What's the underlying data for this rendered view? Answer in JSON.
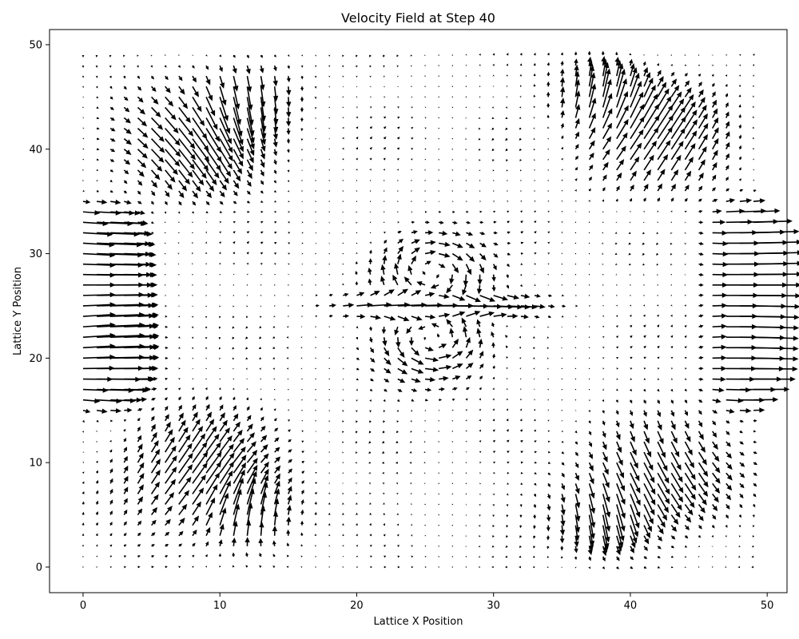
{
  "chart_data": {
    "type": "quiver",
    "title": "Velocity Field at Step 40",
    "xlabel": "Lattice X Position",
    "ylabel": "Lattice Y Position",
    "xlim": [
      -2.45,
      51.45
    ],
    "ylim": [
      -2.45,
      51.45
    ],
    "x_ticks": [
      0,
      10,
      20,
      30,
      40,
      50
    ],
    "y_ticks": [
      0,
      10,
      20,
      30,
      40,
      50
    ],
    "grid": false,
    "arrow_color": "#000000",
    "field": {
      "grid_x": [
        0,
        49
      ],
      "grid_y": [
        0,
        49
      ],
      "step": 1,
      "description_model": "two counter-rotating vortices at approx (25.5, 27.5) and (25.5, 22.5) with central jet along y=25; inflow on left near x=0..4 for y in 12..38; outflow on right near x=46..50 for y in 12..38; lobes of diagonal flow near (9,42),(9,8),(41,42),(41,8)",
      "vortices": [
        {
          "x": 25.5,
          "y": 27.5,
          "circulation": "clockwise"
        },
        {
          "x": 25.5,
          "y": 22.5,
          "circulation": "counterclockwise"
        }
      ],
      "jet": {
        "y": 25,
        "x_range": [
          18,
          34
        ]
      },
      "inflow": {
        "x_range": [
          0,
          4
        ],
        "y_range": [
          12,
          38
        ]
      },
      "outflow": {
        "x_range": [
          46,
          50
        ],
        "y_range": [
          12,
          38
        ]
      }
    }
  }
}
